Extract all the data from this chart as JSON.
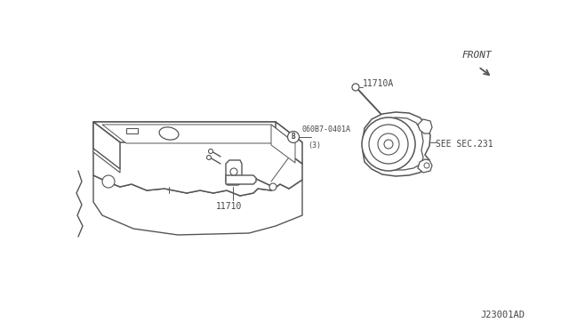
{
  "background_color": "#ffffff",
  "line_color": "#555555",
  "text_color": "#444444",
  "diagram_code": "J23001AD",
  "front_label": "FRONT",
  "part_labels": {
    "bolt_label": "060B7-0401A",
    "bolt_qty": "(3)",
    "bolt_circle": "B",
    "bracket_label": "11710",
    "bolt_a_label": "11710A",
    "see_label": "SEE SEC.231"
  },
  "fig_width": 6.4,
  "fig_height": 3.72,
  "dpi": 100
}
